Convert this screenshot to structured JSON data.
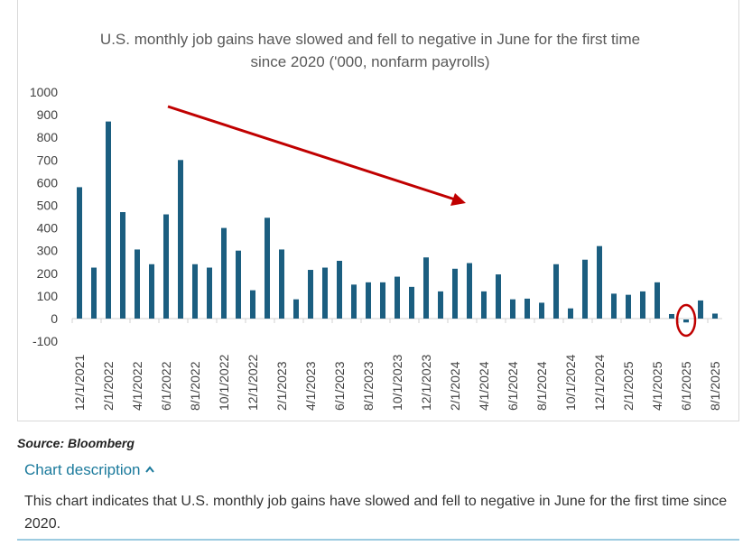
{
  "chart_data": {
    "type": "bar",
    "title_lines": [
      "U.S. monthly job gains have slowed and fell to negative in June for the first time",
      "since 2020 ('000, nonfarm payrolls)"
    ],
    "categories": [
      "12/1/2021",
      "1/1/2022",
      "2/1/2022",
      "3/1/2022",
      "4/1/2022",
      "5/1/2022",
      "6/1/2022",
      "7/1/2022",
      "8/1/2022",
      "9/1/2022",
      "10/1/2022",
      "11/1/2022",
      "12/1/2022",
      "1/1/2023",
      "2/1/2023",
      "3/1/2023",
      "4/1/2023",
      "5/1/2023",
      "6/1/2023",
      "7/1/2023",
      "8/1/2023",
      "9/1/2023",
      "10/1/2023",
      "11/1/2023",
      "12/1/2023",
      "1/1/2024",
      "2/1/2024",
      "3/1/2024",
      "4/1/2024",
      "5/1/2024",
      "6/1/2024",
      "7/1/2024",
      "8/1/2024",
      "9/1/2024",
      "10/1/2024",
      "11/1/2024",
      "12/1/2024",
      "1/1/2025",
      "2/1/2025",
      "3/1/2025",
      "4/1/2025",
      "5/1/2025",
      "6/1/2025",
      "7/1/2025",
      "8/1/2025"
    ],
    "values": [
      580,
      225,
      870,
      470,
      305,
      240,
      460,
      700,
      240,
      225,
      400,
      300,
      125,
      445,
      305,
      85,
      215,
      225,
      255,
      150,
      160,
      160,
      185,
      140,
      270,
      120,
      220,
      245,
      120,
      195,
      85,
      88,
      70,
      240,
      45,
      260,
      320,
      110,
      105,
      120,
      160,
      20,
      -13,
      80,
      22
    ],
    "ylim": [
      -100,
      1000
    ],
    "yticks": [
      -100,
      0,
      100,
      200,
      300,
      400,
      500,
      600,
      700,
      800,
      900,
      1000
    ],
    "xtick_every": 2,
    "bar_color": "#1b5e80",
    "annotation_color": "#c00000",
    "xlabel": "",
    "ylabel": "",
    "legend": "none",
    "grid": false
  },
  "source": "Source: Bloomberg",
  "description": {
    "toggle_label": "Chart description",
    "toggle_icon": "chevron-up-icon",
    "text": "This chart indicates that U.S. monthly job gains have slowed and fell to negative in June for the first time since 2020."
  }
}
